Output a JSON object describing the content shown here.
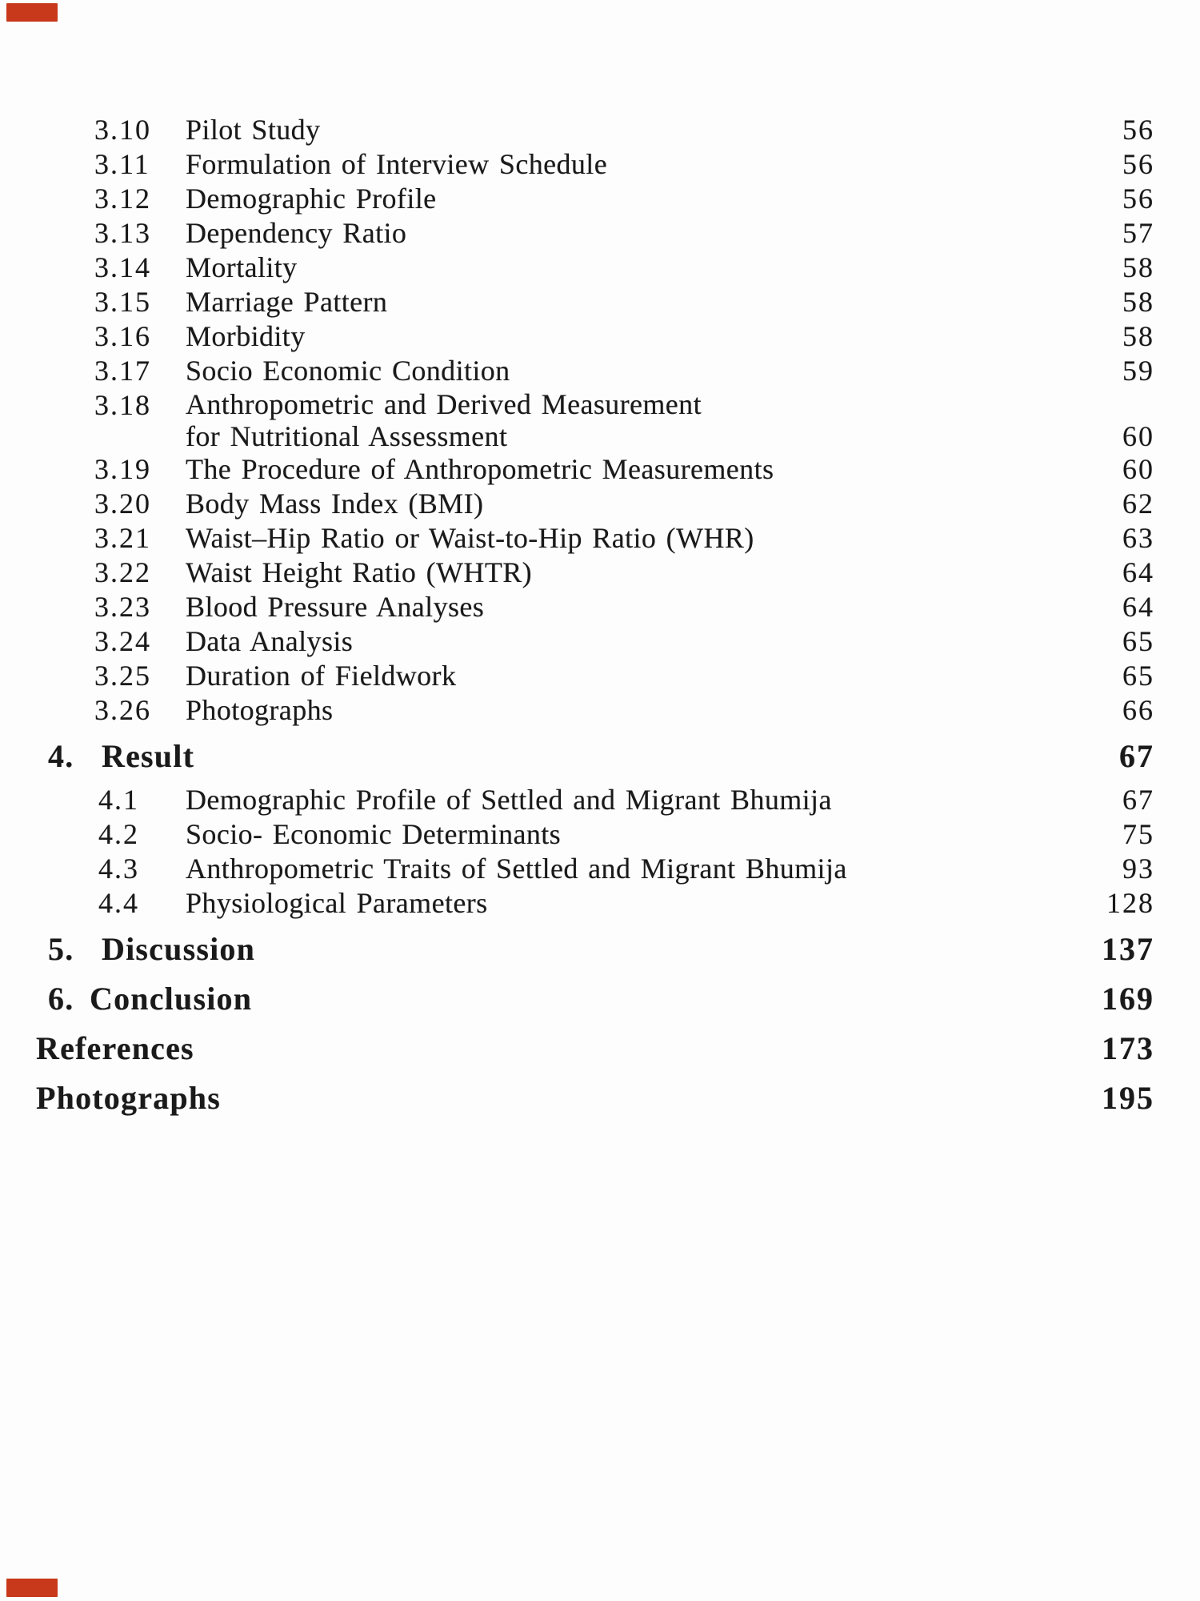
{
  "colors": {
    "paper": "#fdfdfd",
    "ink": "#1a1a1a",
    "corner_marker": "#c8381a"
  },
  "corner_markers": {
    "top_left": "red-scan-mark",
    "bottom_left": "red-scan-mark"
  },
  "toc": {
    "entries": [
      {
        "num": "3.10",
        "label": "Pilot Study",
        "page": "56",
        "variant": "sub3"
      },
      {
        "num": "3.11",
        "label": "Formulation of Interview Schedule",
        "page": "56",
        "variant": "sub3"
      },
      {
        "num": "3.12",
        "label": "Demographic Profile",
        "page": "56",
        "variant": "sub3"
      },
      {
        "num": "3.13",
        "label": "Dependency Ratio",
        "page": "57",
        "variant": "sub3"
      },
      {
        "num": "3.14",
        "label": "Mortality",
        "page": "58",
        "variant": "sub3"
      },
      {
        "num": "3.15",
        "label": "Marriage Pattern",
        "page": "58",
        "variant": "sub3"
      },
      {
        "num": "3.16",
        "label": "Morbidity",
        "page": "58",
        "variant": "sub3"
      },
      {
        "num": "3.17",
        "label": "Socio Economic Condition",
        "page": "59",
        "variant": "sub3"
      },
      {
        "num": "3.18",
        "label": "Anthropometric and Derived Measurement",
        "label_line2": "for Nutritional Assessment",
        "page": "60",
        "variant": "sub3"
      },
      {
        "num": "3.19",
        "label": "The Procedure of Anthropometric Measurements",
        "page": "60",
        "variant": "sub3"
      },
      {
        "num": "3.20",
        "label": "Body Mass Index (BMI)",
        "page": "62",
        "variant": "sub3"
      },
      {
        "num": "3.21",
        "label": "Waist–Hip Ratio or Waist-to-Hip Ratio (WHR)",
        "page": "63",
        "variant": "sub3"
      },
      {
        "num": "3.22",
        "label": "Waist Height Ratio (WHTR)",
        "page": "64",
        "variant": "sub3"
      },
      {
        "num": "3.23",
        "label": "Blood Pressure Analyses",
        "page": "64",
        "variant": "sub3"
      },
      {
        "num": "3.24",
        "label": "Data Analysis",
        "page": "65",
        "variant": "sub3"
      },
      {
        "num": "3.25",
        "label": "Duration of Fieldwork",
        "page": "65",
        "variant": "sub3"
      },
      {
        "num": "3.26",
        "label": "Photographs",
        "page": "66",
        "variant": "sub3"
      },
      {
        "num": "4.",
        "label": "Result",
        "page": "67",
        "variant": "section"
      },
      {
        "num": "4.1",
        "label": "Demographic Profile of Settled and Migrant Bhumija",
        "page": "67",
        "variant": "sub4"
      },
      {
        "num": "4.2",
        "label": "Socio- Economic Determinants",
        "page": "75",
        "variant": "sub4"
      },
      {
        "num": "4.3",
        "label": "Anthropometric Traits of Settled and Migrant Bhumija",
        "page": "93",
        "variant": "sub4"
      },
      {
        "num": "4.4",
        "label": "Physiological Parameters",
        "page": "128",
        "variant": "sub4"
      },
      {
        "num": "5.",
        "label": "Discussion",
        "page": "137",
        "variant": "section"
      },
      {
        "num": "6.",
        "label": "Conclusion",
        "page": "169",
        "variant": "section-tight"
      },
      {
        "num": "",
        "label": "References",
        "page": "173",
        "variant": "plain"
      },
      {
        "num": "",
        "label": "Photographs",
        "page": "195",
        "variant": "plain"
      }
    ]
  }
}
